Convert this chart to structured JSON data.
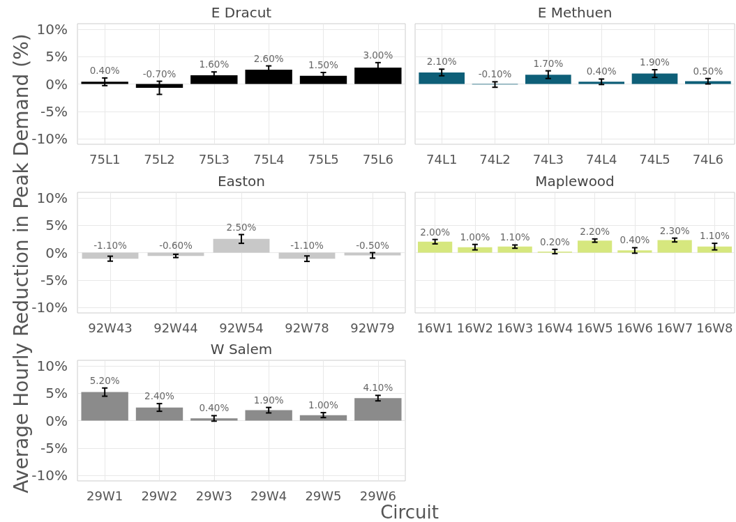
{
  "chart_data": [
    {
      "type": "bar",
      "title": "E Dracut",
      "categories": [
        "75L1",
        "75L2",
        "75L3",
        "75L4",
        "75L5",
        "75L6"
      ],
      "values": [
        0.4,
        -0.7,
        1.6,
        2.6,
        1.5,
        3.0
      ],
      "color": "#000000",
      "errors": [
        0.7,
        1.2,
        0.6,
        0.7,
        0.6,
        0.9
      ],
      "value_labels": [
        "0.40%",
        "-0.70%",
        "1.60%",
        "2.60%",
        "1.50%",
        "3.00%"
      ],
      "ylim": [
        -11,
        11
      ],
      "yticks": [
        {
          "value": -10,
          "label": "-10%"
        },
        {
          "value": -5,
          "label": "-5%"
        },
        {
          "value": 0,
          "label": "0%"
        },
        {
          "value": 5,
          "label": "5%"
        },
        {
          "value": 10,
          "label": "10%"
        }
      ],
      "grid": true
    },
    {
      "type": "bar",
      "title": "E Methuen",
      "categories": [
        "74L1",
        "74L2",
        "74L3",
        "74L4",
        "74L5",
        "74L6"
      ],
      "values": [
        2.1,
        -0.1,
        1.7,
        0.4,
        1.9,
        0.5
      ],
      "color": "#0e5f78",
      "errors": [
        0.6,
        0.5,
        0.7,
        0.5,
        0.7,
        0.5
      ],
      "value_labels": [
        "2.10%",
        "-0.10%",
        "1.70%",
        "0.40%",
        "1.90%",
        "0.50%"
      ],
      "ylim": [
        -11,
        11
      ],
      "yticks": [
        -10,
        -5,
        0,
        5,
        10
      ],
      "grid": true,
      "tick_labels": "x"
    },
    {
      "type": "bar",
      "title": "Easton",
      "ylabel": "Average Hourly Reduction in Peak Demand (%)",
      "categories": [
        "92W43",
        "92W44",
        "92W54",
        "92W78",
        "92W79"
      ],
      "values": [
        -1.1,
        -0.6,
        2.5,
        -1.1,
        -0.5
      ],
      "color": "#c8c8c8",
      "errors": [
        0.45,
        0.3,
        0.8,
        0.5,
        0.5
      ],
      "value_labels": [
        "-1.10%",
        "-0.60%",
        "2.50%",
        "-1.10%",
        "-0.50%"
      ],
      "ylim": [
        -11,
        11
      ],
      "yticks": [
        {
          "value": -10,
          "label": "-10%"
        },
        {
          "value": -5,
          "label": "-5%"
        },
        {
          "value": 0,
          "label": "0%"
        },
        {
          "value": 5,
          "label": "5%"
        },
        {
          "value": 10,
          "label": "10%"
        }
      ],
      "grid": true
    },
    {
      "type": "bar",
      "title": "Maplewood",
      "categories": [
        "16W1",
        "16W2",
        "16W3",
        "16W4",
        "16W5",
        "16W6",
        "16W7",
        "16W8"
      ],
      "values": [
        2.0,
        1.0,
        1.1,
        0.2,
        2.2,
        0.4,
        2.3,
        1.1
      ],
      "color": "#d6e77e",
      "errors": [
        0.4,
        0.5,
        0.3,
        0.4,
        0.3,
        0.5,
        0.35,
        0.6
      ],
      "value_labels": [
        "2.00%",
        "1.00%",
        "1.10%",
        "0.20%",
        "2.20%",
        "0.40%",
        "2.30%",
        "1.10%"
      ],
      "ylim": [
        -11,
        11
      ],
      "yticks": [
        -10,
        -5,
        0,
        5,
        10
      ],
      "grid": true,
      "tick_labels": "x"
    },
    {
      "type": "bar",
      "title": "W Salem",
      "xlabel": "Circuit",
      "categories": [
        "29W1",
        "29W2",
        "29W3",
        "29W4",
        "29W5",
        "29W6"
      ],
      "values": [
        5.2,
        2.4,
        0.4,
        1.9,
        1.0,
        4.1
      ],
      "color": "#8b8b8b",
      "errors": [
        0.75,
        0.7,
        0.5,
        0.5,
        0.45,
        0.5
      ],
      "value_labels": [
        "5.20%",
        "2.40%",
        "0.40%",
        "1.90%",
        "1.00%",
        "4.10%"
      ],
      "ylim": [
        -11,
        11
      ],
      "yticks": [
        {
          "value": -10,
          "label": "-10%"
        },
        {
          "value": -5,
          "label": "-5%"
        },
        {
          "value": 0,
          "label": "0%"
        },
        {
          "value": 5,
          "label": "5%"
        },
        {
          "value": 10,
          "label": "10%"
        }
      ],
      "grid": true
    }
  ]
}
